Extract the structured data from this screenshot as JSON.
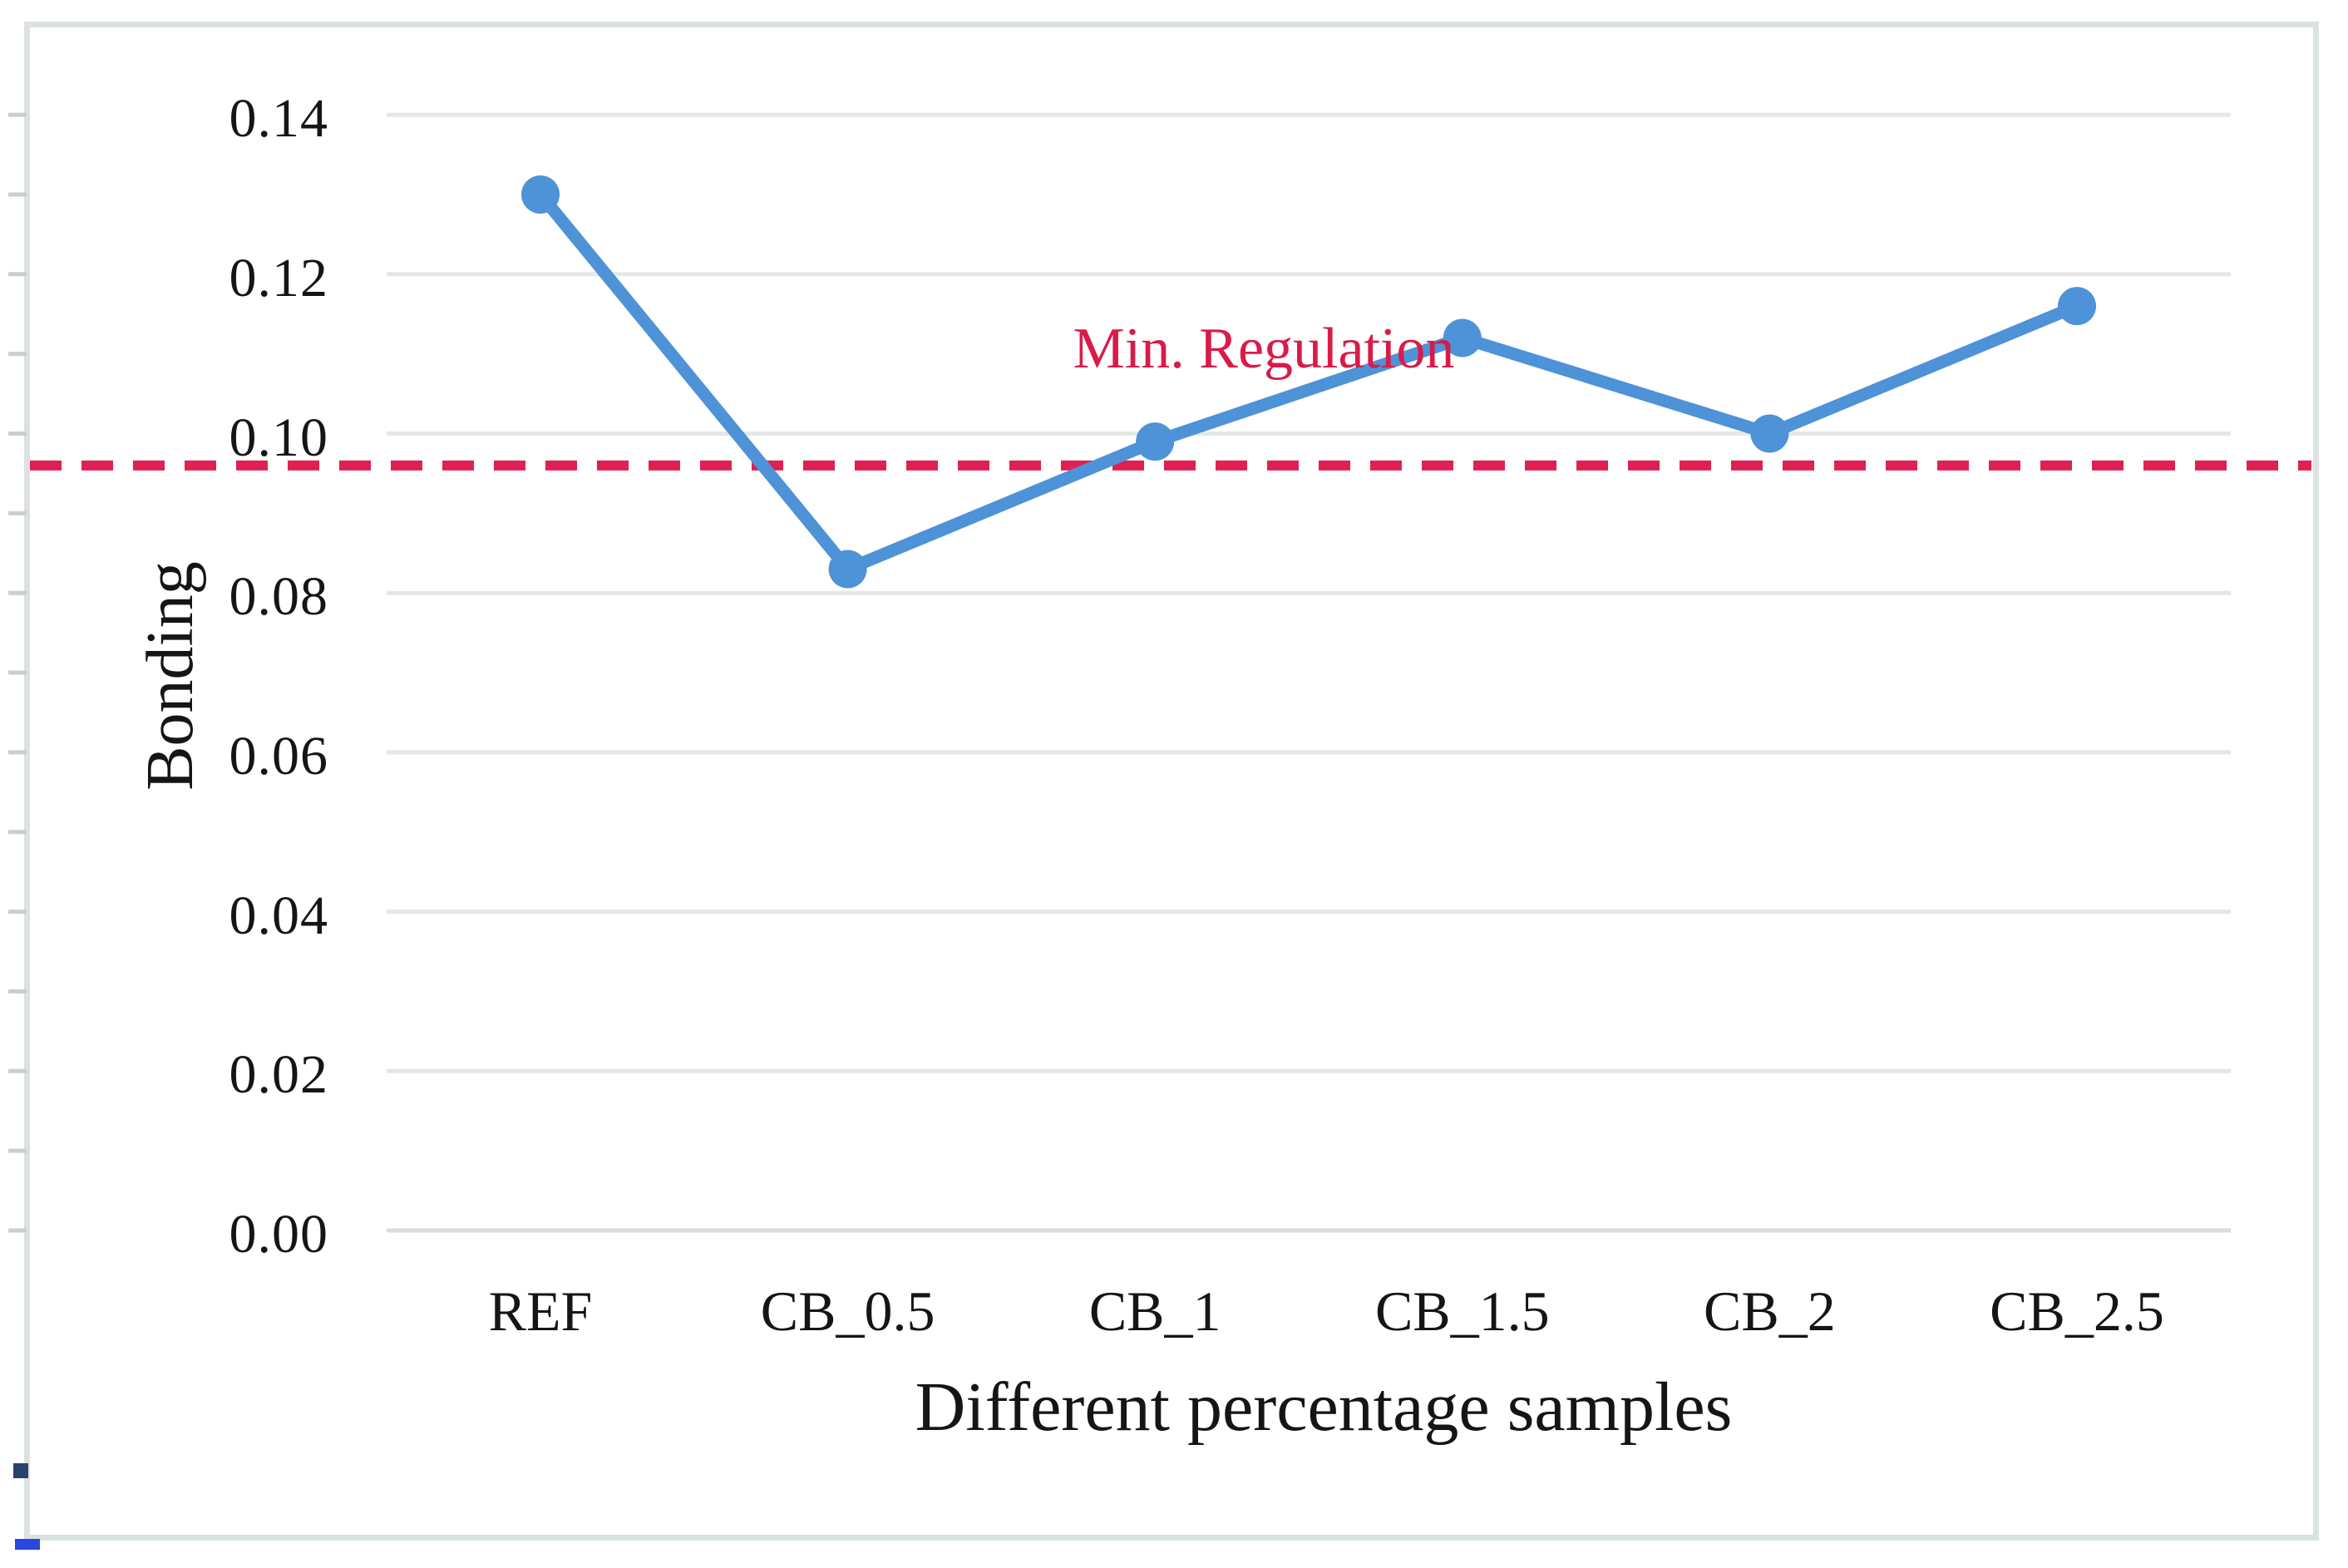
{
  "chart_data": {
    "type": "line",
    "title": "",
    "categories": [
      "REF",
      "CB_0.5",
      "CB_1",
      "CB_1.5",
      "CB_2",
      "CB_2.5"
    ],
    "series": [
      {
        "name": "Bonding",
        "color": "#4e92d7",
        "values": [
          0.13,
          0.083,
          0.099,
          0.112,
          0.1,
          0.116
        ]
      }
    ],
    "reference_line": {
      "label": "Min. Regulation",
      "value": 0.096,
      "color": "#e02052",
      "style": "dashed"
    },
    "xlabel": "Different percentage samples",
    "ylabel": "Bonding",
    "ylim": [
      0,
      0.15
    ],
    "ytick_step": 0.02,
    "yticks": [
      "0.14",
      "0.12",
      "0.10",
      "0.08",
      "0.06",
      "0.04",
      "0.02",
      "0.00"
    ],
    "grid": true,
    "legend_position": "none",
    "colors": {
      "gridline": "#e3e8e7",
      "axis_line": "#d8dddd",
      "frame": "#dce1e1",
      "edge_tick": "#c9cfcf",
      "annotation_text": "#d81b48",
      "tick_text": "#151515"
    }
  }
}
